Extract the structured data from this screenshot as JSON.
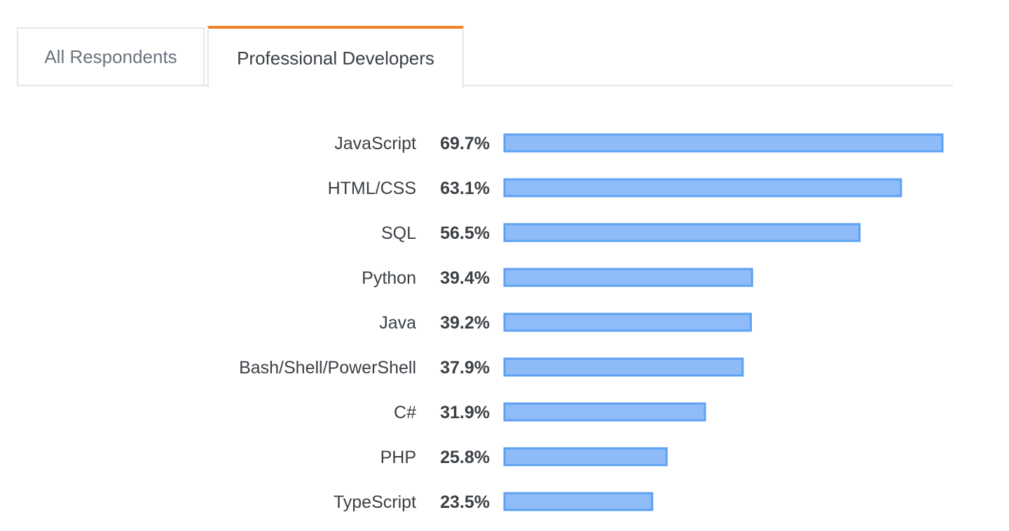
{
  "tabs": {
    "all_respondents": "All Respondents",
    "professional_developers": "Professional Developers",
    "active_accent_color": "#f48024"
  },
  "chart_data": {
    "type": "bar",
    "orientation": "horizontal",
    "categories": [
      "JavaScript",
      "HTML/CSS",
      "SQL",
      "Python",
      "Java",
      "Bash/Shell/PowerShell",
      "C#",
      "PHP",
      "TypeScript"
    ],
    "values": [
      69.7,
      63.1,
      56.5,
      39.4,
      39.2,
      37.9,
      31.9,
      25.8,
      23.5
    ],
    "value_labels": [
      "69.7%",
      "63.1%",
      "56.5%",
      "39.4%",
      "39.2%",
      "37.9%",
      "31.9%",
      "25.8%",
      "23.5%"
    ],
    "unit": "%",
    "title": "",
    "xlabel": "",
    "ylabel": "",
    "xlim": [
      0,
      69.7
    ],
    "grid": false,
    "legend": "none",
    "bar_fill_color": "#8fbcf8",
    "bar_stroke_color": "#5ea1f3"
  }
}
